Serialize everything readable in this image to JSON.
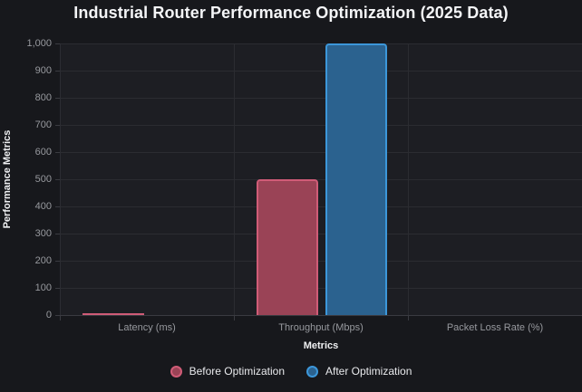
{
  "chart": {
    "title": "Industrial Router Performance Optimization (2025 Data)",
    "x_axis_title": "Metrics",
    "y_axis_title": "Performance Metrics"
  },
  "colors": {
    "background": "#17181c",
    "plot_background": "#1d1e23",
    "gridline": "#2b2c31",
    "tick_label": "#97999e",
    "title_text": "#f4f5f7",
    "before_fill": "#9a4356",
    "before_border": "#d05c77",
    "after_fill": "#2b628f",
    "after_border": "#3c97da"
  },
  "chart_data": {
    "type": "bar",
    "title": "Industrial Router Performance Optimization (2025 Data)",
    "xlabel": "Metrics",
    "ylabel": "Performance Metrics",
    "categories": [
      "Latency (ms)",
      "Throughput (Mbps)",
      "Packet Loss Rate (%)"
    ],
    "series": [
      {
        "name": "Before Optimization",
        "values": [
          5,
          500,
          0.5
        ],
        "fill": "#9a4356",
        "border": "#d05c77"
      },
      {
        "name": "After Optimization",
        "values": [
          2,
          1000,
          0.1
        ],
        "fill": "#2b628f",
        "border": "#3c97da"
      }
    ],
    "ylim": [
      0,
      1000
    ],
    "y_tick_step": 100,
    "y_tick_labels": [
      "0",
      "100",
      "200",
      "300",
      "400",
      "500",
      "600",
      "700",
      "800",
      "900",
      "1,000"
    ],
    "grid": true,
    "legend_position": "bottom"
  }
}
